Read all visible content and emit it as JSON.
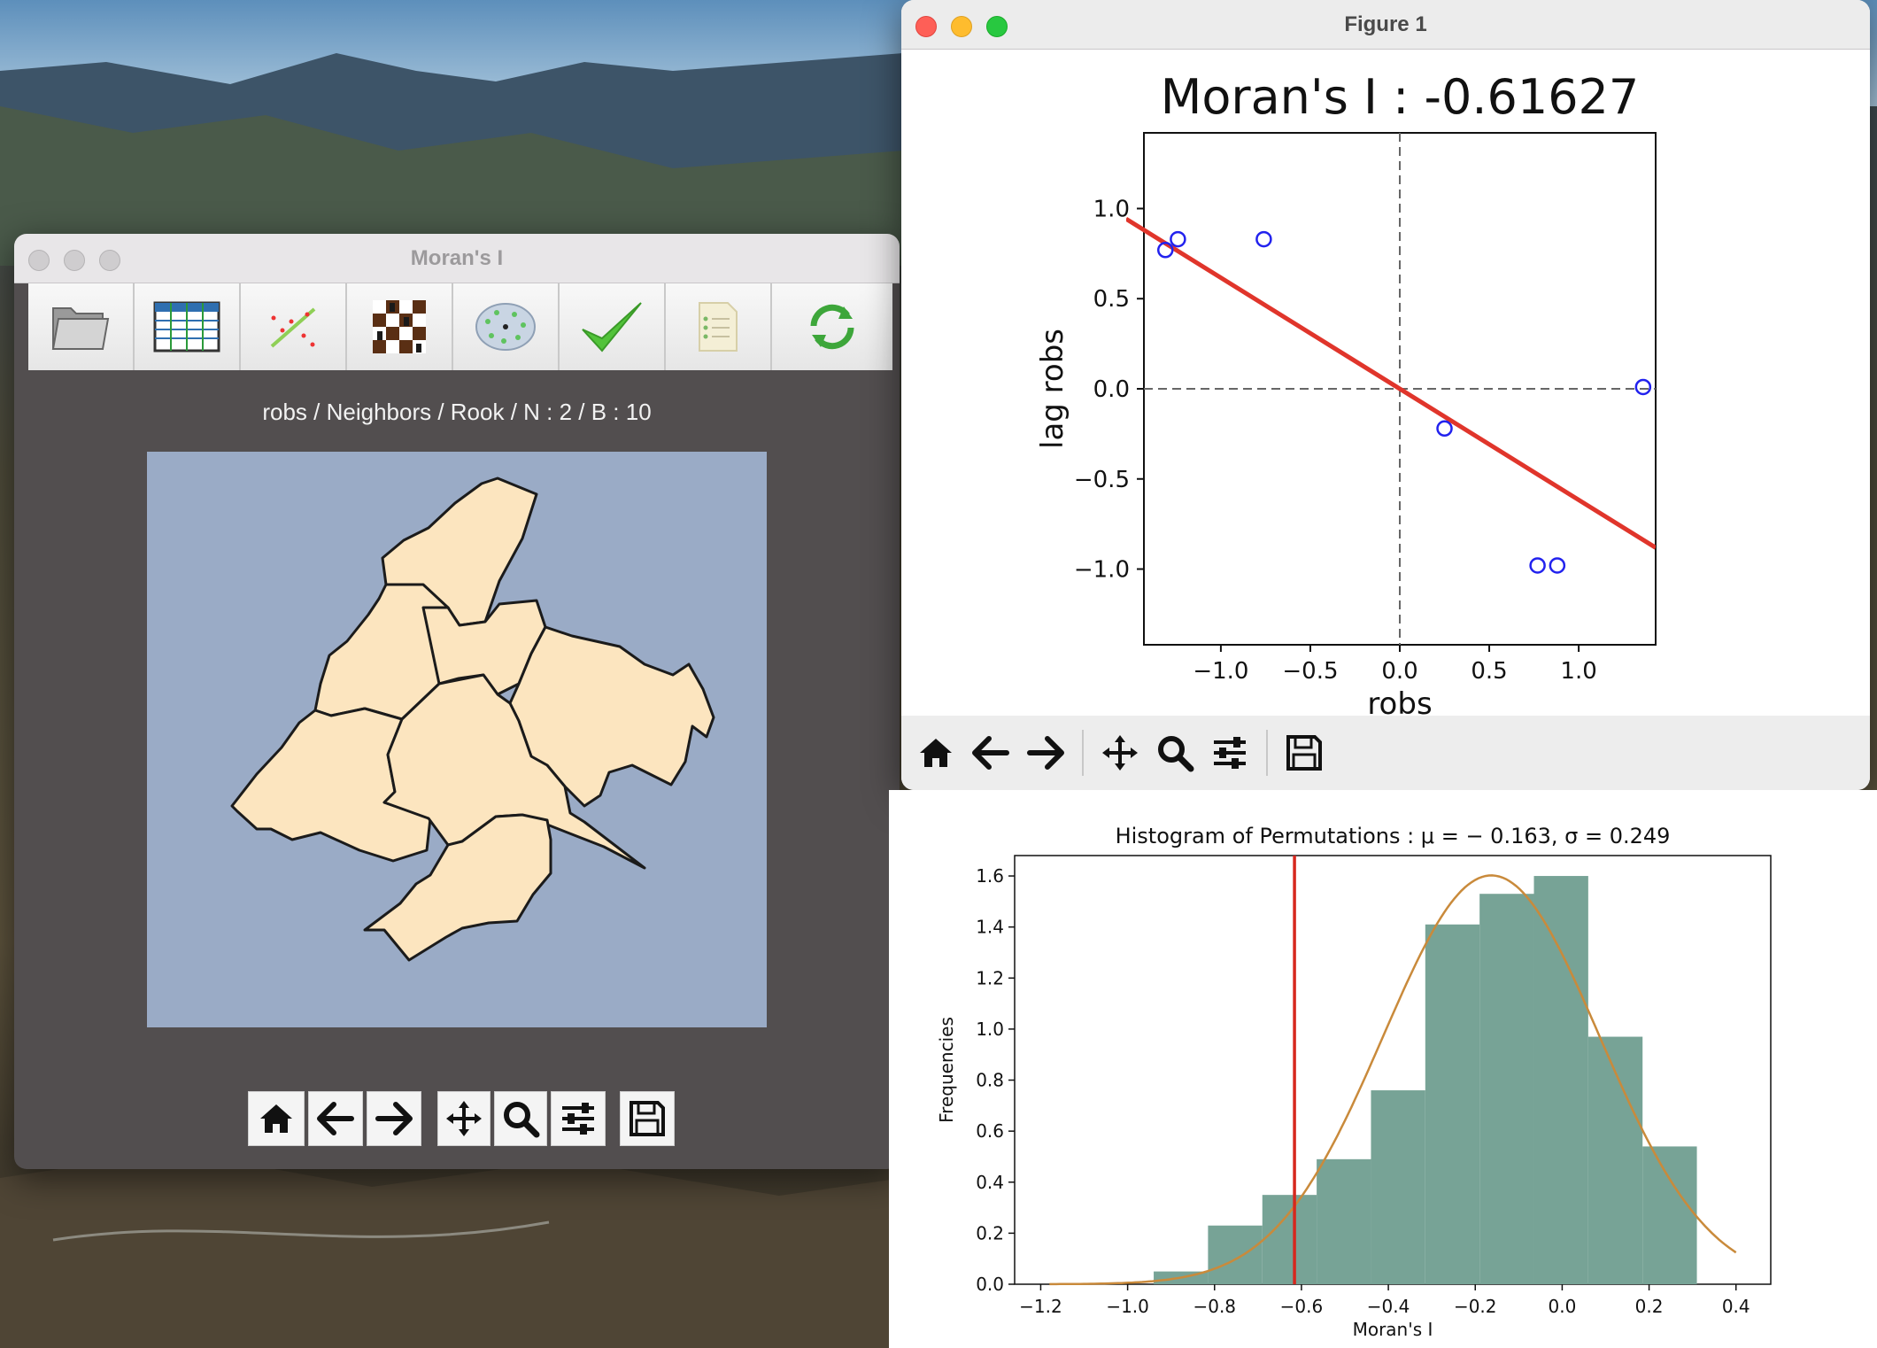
{
  "main_window": {
    "title": "Moran's I",
    "toolbar": [
      {
        "name": "open-folder-icon"
      },
      {
        "name": "table-icon"
      },
      {
        "name": "scatter-icon"
      },
      {
        "name": "chessboard-icon"
      },
      {
        "name": "cluster-map-icon"
      },
      {
        "name": "checkmark-icon"
      },
      {
        "name": "report-icon"
      },
      {
        "name": "refresh-icon"
      }
    ],
    "map_caption": "robs / Neighbors / Rook / N : 2 / B : 10",
    "map_fill": "#fce5bf",
    "map_bg": "#9aabc6"
  },
  "figure_window": {
    "title": "Figure 1"
  },
  "chart_data": [
    {
      "type": "scatter",
      "title": "Moran's I : -0.61627",
      "xlabel": "robs",
      "ylabel": "lag robs",
      "xlim": [
        -1.43,
        1.43
      ],
      "ylim": [
        -1.42,
        1.42
      ],
      "xticks": [
        -1.0,
        -0.5,
        0.0,
        0.5,
        1.0
      ],
      "yticks": [
        1.0,
        0.5,
        0.0,
        -0.5,
        -1.0
      ],
      "xtick_labels": [
        "−1.0",
        "−0.5",
        "0.0",
        "0.5",
        "1.0"
      ],
      "ytick_labels": [
        "1.0",
        "0.5",
        "0.0",
        "−0.5",
        "−1.0"
      ],
      "points": [
        {
          "x": -1.31,
          "y": 0.77
        },
        {
          "x": -1.24,
          "y": 0.83
        },
        {
          "x": -0.76,
          "y": 0.83
        },
        {
          "x": 0.25,
          "y": -0.22
        },
        {
          "x": 0.77,
          "y": -0.98
        },
        {
          "x": 0.88,
          "y": -0.98
        },
        {
          "x": 1.36,
          "y": 0.01
        }
      ],
      "regression_slope": -0.61627,
      "colors": {
        "points": "#2222ee",
        "line": "#e0352b"
      }
    },
    {
      "type": "bar",
      "title": "Histogram of Permutations :  μ = − 0.163,  σ = 0.249",
      "xlabel": "Moran's I",
      "ylabel": "Frequencies",
      "xlim": [
        -1.26,
        0.48
      ],
      "ylim": [
        0,
        1.68
      ],
      "xticks": [
        -1.2,
        -1.0,
        -0.8,
        -0.6,
        -0.4,
        -0.2,
        0.0,
        0.2,
        0.4
      ],
      "xtick_labels": [
        "−1.2",
        "−1.0",
        "−0.8",
        "−0.6",
        "−0.4",
        "−0.2",
        "0.0",
        "0.2",
        "0.4"
      ],
      "yticks": [
        0.0,
        0.2,
        0.4,
        0.6,
        0.8,
        1.0,
        1.2,
        1.4,
        1.6
      ],
      "ytick_labels": [
        "0.0",
        "0.2",
        "0.4",
        "0.6",
        "0.8",
        "1.0",
        "1.2",
        "1.4",
        "1.6"
      ],
      "bins": [
        {
          "x0": -0.94,
          "x1": -0.815,
          "value": 0.05
        },
        {
          "x0": -0.815,
          "x1": -0.69,
          "value": 0.23
        },
        {
          "x0": -0.69,
          "x1": -0.565,
          "value": 0.35
        },
        {
          "x0": -0.565,
          "x1": -0.44,
          "value": 0.49
        },
        {
          "x0": -0.44,
          "x1": -0.315,
          "value": 0.76
        },
        {
          "x0": -0.315,
          "x1": -0.19,
          "value": 1.41
        },
        {
          "x0": -0.19,
          "x1": -0.065,
          "value": 1.53
        },
        {
          "x0": -0.065,
          "x1": 0.06,
          "value": 1.6
        },
        {
          "x0": 0.06,
          "x1": 0.185,
          "value": 0.97
        },
        {
          "x0": 0.185,
          "x1": 0.31,
          "value": 0.54
        }
      ],
      "observed_value": -0.616,
      "normal_curve": {
        "mu": -0.163,
        "sigma": 0.249,
        "x_from": -1.18,
        "x_to": 0.4
      },
      "colors": {
        "bars": "#77a396",
        "curve": "#c98a3b",
        "observed": "#d6281e"
      }
    }
  ]
}
